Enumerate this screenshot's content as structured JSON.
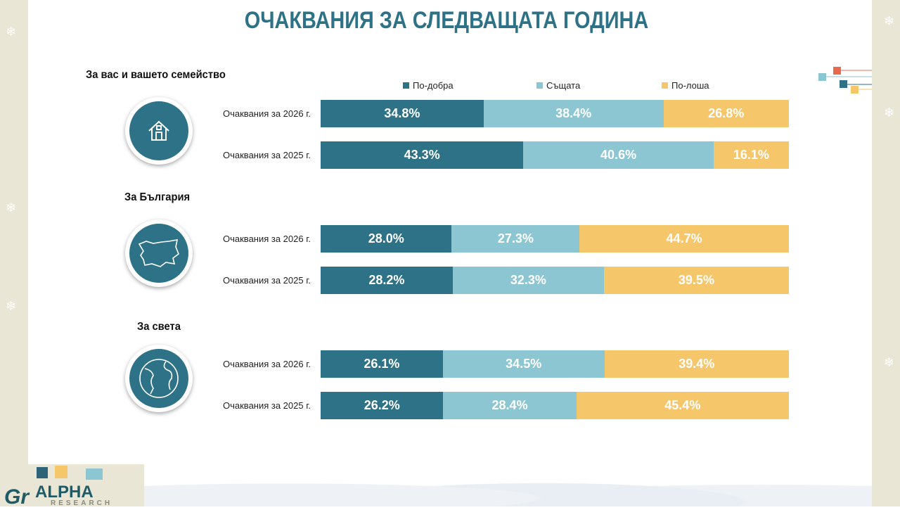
{
  "title": "ОЧАКВАНИЯ ЗА СЛЕДВАЩАТА ГОДИНА",
  "logo": {
    "name": "ALPHA",
    "sub": "RESEARCH"
  },
  "colors": {
    "title": "#2e7287",
    "better": "#2e7287",
    "same": "#8cc6d2",
    "worse": "#f6c66b"
  },
  "chart_data": {
    "type": "bar",
    "stacked": true,
    "orientation": "horizontal",
    "unit": "%",
    "legend": [
      "По-добра",
      "Същата",
      "По-лоша"
    ],
    "legend_position": "top",
    "groups": [
      {
        "title": "За вас и вашето семейство",
        "icon": "house-icon",
        "rows": [
          {
            "label": "Очаквания за 2026 г.",
            "values": [
              34.8,
              38.4,
              26.8
            ]
          },
          {
            "label": "Очаквания за 2025 г.",
            "values": [
              43.3,
              40.6,
              16.1
            ]
          }
        ]
      },
      {
        "title": "За България",
        "icon": "bulgaria-map-icon",
        "rows": [
          {
            "label": "Очаквания за 2026 г.",
            "values": [
              28.0,
              27.3,
              44.7
            ]
          },
          {
            "label": "Очаквания за 2025 г.",
            "values": [
              28.2,
              32.3,
              39.5
            ]
          }
        ]
      },
      {
        "title": "За света",
        "icon": "globe-icon",
        "rows": [
          {
            "label": "Очаквания за 2026 г.",
            "values": [
              26.1,
              34.5,
              39.4
            ]
          },
          {
            "label": "Очаквания за 2025 г.",
            "values": [
              26.2,
              28.4,
              45.4
            ]
          }
        ]
      }
    ]
  }
}
